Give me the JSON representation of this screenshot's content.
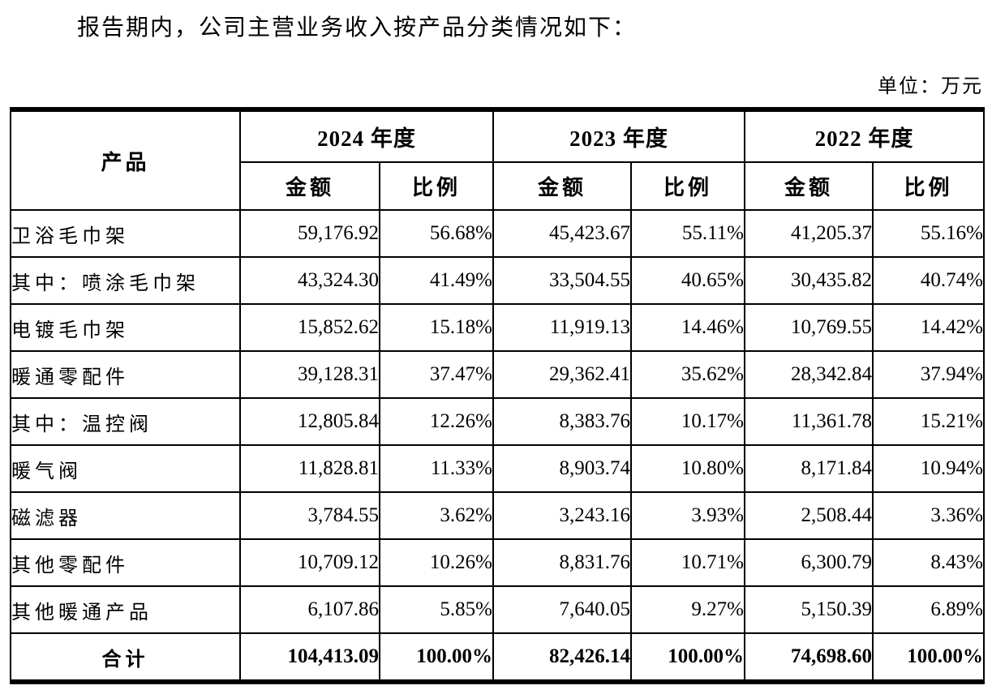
{
  "page": {
    "title": "报告期内，公司主营业务收入按产品分类情况如下：",
    "unit_label": "单位：万元"
  },
  "table": {
    "product_header": "产品",
    "year_headers": [
      "2024 年度",
      "2023 年度",
      "2022 年度"
    ],
    "amount_header": "金额",
    "ratio_header": "比例",
    "rows": [
      {
        "label": "卫浴毛巾架",
        "indent": "none",
        "bold": false,
        "cells": [
          "59,176.92",
          "56.68%",
          "45,423.67",
          "55.11%",
          "41,205.37",
          "55.16%"
        ]
      },
      {
        "label": "其中：喷涂毛巾架",
        "indent": "none",
        "bold": false,
        "cells": [
          "43,324.30",
          "41.49%",
          "33,504.55",
          "40.65%",
          "30,435.82",
          "40.74%"
        ]
      },
      {
        "label": "电镀毛巾架",
        "indent": "sub",
        "bold": false,
        "cells": [
          "15,852.62",
          "15.18%",
          "11,919.13",
          "14.46%",
          "10,769.55",
          "14.42%"
        ]
      },
      {
        "label": "暖通零配件",
        "indent": "none",
        "bold": false,
        "cells": [
          "39,128.31",
          "37.47%",
          "29,362.41",
          "35.62%",
          "28,342.84",
          "37.94%"
        ]
      },
      {
        "label": "其中：温控阀",
        "indent": "none",
        "bold": false,
        "cells": [
          "12,805.84",
          "12.26%",
          "8,383.76",
          "10.17%",
          "11,361.78",
          "15.21%"
        ]
      },
      {
        "label": "暖气阀",
        "indent": "sub",
        "bold": false,
        "cells": [
          "11,828.81",
          "11.33%",
          "8,903.74",
          "10.80%",
          "8,171.84",
          "10.94%"
        ]
      },
      {
        "label": "磁滤器",
        "indent": "sub",
        "bold": false,
        "cells": [
          "3,784.55",
          "3.62%",
          "3,243.16",
          "3.93%",
          "2,508.44",
          "3.36%"
        ]
      },
      {
        "label": "其他零配件",
        "indent": "sub",
        "bold": false,
        "cells": [
          "10,709.12",
          "10.26%",
          "8,831.76",
          "10.71%",
          "6,300.79",
          "8.43%"
        ]
      },
      {
        "label": "其他暖通产品",
        "indent": "none",
        "bold": false,
        "cells": [
          "6,107.86",
          "5.85%",
          "7,640.05",
          "9.27%",
          "5,150.39",
          "6.89%"
        ]
      },
      {
        "label": "合计",
        "indent": "center",
        "bold": true,
        "cells": [
          "104,413.09",
          "100.00%",
          "82,426.14",
          "100.00%",
          "74,698.60",
          "100.00%"
        ]
      }
    ]
  }
}
